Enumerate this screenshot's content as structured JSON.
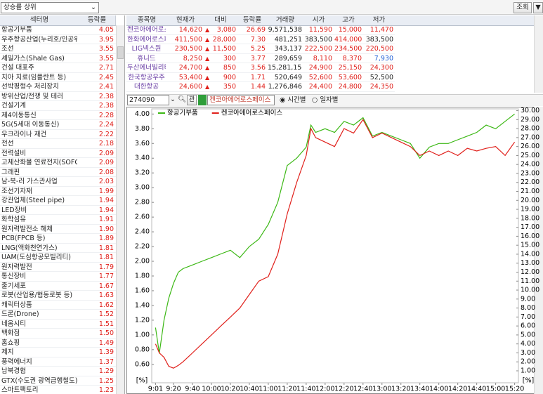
{
  "toolbar": {
    "filter": "상승률 상위",
    "buttons": [
      "조회",
      "▼"
    ]
  },
  "sector_table": {
    "headers": [
      "섹터명",
      "등락률"
    ],
    "rows": [
      [
        "항공기부품",
        "4.05"
      ],
      [
        "우주항공산업(누리호/인공위",
        "3.95"
      ],
      [
        "조선",
        "3.55"
      ],
      [
        "셰일가스(Shale Gas)",
        "3.55"
      ],
      [
        "건설 대표주",
        "2.71"
      ],
      [
        "치아 치료(임플란트 등)",
        "2.45"
      ],
      [
        "선박평형수 처리장치",
        "2.41"
      ],
      [
        "방위산업/전쟁 및 테러",
        "2.38"
      ],
      [
        "건설기계",
        "2.38"
      ],
      [
        "제4이동통신",
        "2.28"
      ],
      [
        "5G(5세대 이동통신)",
        "2.24"
      ],
      [
        "우크라이나 재건",
        "2.22"
      ],
      [
        "전선",
        "2.18"
      ],
      [
        "전력설비",
        "2.09"
      ],
      [
        "고체산화물 연료전지(SOFC)",
        "2.09"
      ],
      [
        "그래핀",
        "2.08"
      ],
      [
        "남-북-러 가스관사업",
        "2.03"
      ],
      [
        "조선기자재",
        "1.99"
      ],
      [
        "강관업체(Steel pipe)",
        "1.94"
      ],
      [
        "LED장비",
        "1.94"
      ],
      [
        "화학섬유",
        "1.91"
      ],
      [
        "원자력발전소 해체",
        "1.90"
      ],
      [
        "PCB(FPCB 등)",
        "1.89"
      ],
      [
        "LNG(액화천연가스)",
        "1.81"
      ],
      [
        "UAM(도심항공모빌리티)",
        "1.81"
      ],
      [
        "원자력발전",
        "1.79"
      ],
      [
        "통신장비",
        "1.77"
      ],
      [
        "줄기세포",
        "1.67"
      ],
      [
        "로봇(산업용/협동로봇 등)",
        "1.63"
      ],
      [
        "캐릭터상품",
        "1.62"
      ],
      [
        "드론(Drone)",
        "1.52"
      ],
      [
        "네옴시티",
        "1.51"
      ],
      [
        "백화점",
        "1.50"
      ],
      [
        "홈쇼핑",
        "1.49"
      ],
      [
        "제지",
        "1.39"
      ],
      [
        "풍력에너지",
        "1.37"
      ],
      [
        "남북경협",
        "1.29"
      ],
      [
        "GTX(수도권 광역급행철도)",
        "1.25"
      ],
      [
        "스마트팩토리",
        "1.23"
      ]
    ]
  },
  "stock_table": {
    "headers": [
      "종목명",
      "현재가",
      "대비",
      "등락률",
      "거래량",
      "시가",
      "고가",
      "저가"
    ],
    "rows": [
      {
        "sign": "▲",
        "cells": [
          "켄코아에어로스페이스",
          "14,620",
          "3,080",
          "26.69",
          "9,571,538",
          "11,590",
          "15,000",
          "11,470"
        ]
      },
      {
        "sign": "▲",
        "cells": [
          "한화에어로스페이스",
          "411,500",
          "28,000",
          "7.30",
          "481,251",
          "383,500",
          "414,000",
          "383,500"
        ]
      },
      {
        "sign": "▲",
        "cells": [
          "LIG넥스원",
          "230,500",
          "11,500",
          "5.25",
          "343,137",
          "222,500",
          "234,500",
          "220,500"
        ]
      },
      {
        "sign": "▲",
        "cells": [
          "휴니드",
          "8,250",
          "300",
          "3.77",
          "289,659",
          "8,110",
          "8,370",
          "7,930"
        ]
      },
      {
        "sign": "▲",
        "cells": [
          "두산에너빌리티",
          "24,700",
          "850",
          "3.56",
          "15,281,154",
          "24,900",
          "25,150",
          "24,300"
        ]
      },
      {
        "sign": "▲",
        "cells": [
          "한국항공우주",
          "53,400",
          "900",
          "1.71",
          "520,649",
          "52,600",
          "53,600",
          "52,500"
        ]
      },
      {
        "sign": "▲",
        "cells": [
          "대한항공",
          "24,600",
          "350",
          "1.44",
          "1,276,846",
          "24,400",
          "24,800",
          "24,350"
        ]
      }
    ]
  },
  "chart_controls": {
    "code": "274090",
    "button": "관",
    "name": "켄코아에어로스페이스",
    "radios": [
      "시간별",
      "일자별"
    ]
  },
  "chart_data": {
    "type": "line",
    "x": [
      "9:01",
      "9:05",
      "9:10",
      "9:15",
      "9:20",
      "9:25",
      "9:30",
      "9:40",
      "9:50",
      "10:00",
      "10:10",
      "10:20",
      "10:30",
      "10:40",
      "10:50",
      "11:00",
      "11:10",
      "11:20",
      "11:30",
      "11:40",
      "11:45",
      "11:50",
      "12:00",
      "12:10",
      "12:20",
      "12:30",
      "12:40",
      "12:50",
      "13:00",
      "13:10",
      "13:20",
      "13:30",
      "13:40",
      "13:50",
      "14:00",
      "14:10",
      "14:20",
      "14:30",
      "14:40",
      "14:50",
      "15:00",
      "15:10",
      "15:20"
    ],
    "series": [
      {
        "name": "항공기부품",
        "color": "#3cb815",
        "values": [
          1.1,
          0.75,
          1.2,
          1.5,
          1.7,
          1.85,
          1.9,
          1.95,
          2.0,
          2.05,
          2.1,
          2.15,
          2.05,
          2.2,
          2.3,
          2.5,
          2.8,
          3.3,
          3.4,
          3.55,
          3.85,
          3.75,
          3.8,
          3.75,
          3.9,
          3.85,
          3.95,
          3.7,
          3.75,
          3.7,
          3.65,
          3.6,
          3.4,
          3.55,
          3.6,
          3.6,
          3.65,
          3.7,
          3.75,
          3.85,
          3.8,
          3.9,
          4.0
        ]
      },
      {
        "name": "켄코아에어로스페이스",
        "color": "#e0201b",
        "axis": "y2",
        "values": [
          4.0,
          3.0,
          2.5,
          1.5,
          1.3,
          1.6,
          2.0,
          3.0,
          4.0,
          5.0,
          6.0,
          7.0,
          8.0,
          9.5,
          11.0,
          11.5,
          14.0,
          18.5,
          22.0,
          25.0,
          28.0,
          27.0,
          26.5,
          26.0,
          28.0,
          27.5,
          29.0,
          27.0,
          27.5,
          27.0,
          26.5,
          26.0,
          25.0,
          25.5,
          25.0,
          25.5,
          25.0,
          25.8,
          25.5,
          25.8,
          26.0,
          25.0,
          26.5
        ]
      }
    ],
    "xlim": [
      "8:57",
      "15:24"
    ],
    "xticks": [
      "9:01",
      "9:20",
      "9:40",
      "10:00",
      "10:20",
      "10:40",
      "11:00",
      "11:20",
      "11:40",
      "12:00",
      "12:20",
      "12:40",
      "13:00",
      "13:20",
      "13:40",
      "14:00",
      "14:20",
      "14:40",
      "15:00",
      "15:20"
    ],
    "ylim": [
      0.35,
      4.07
    ],
    "yticks": [
      {
        "value": 0.6,
        "label": "0.60"
      },
      {
        "value": 0.8,
        "label": "0.80"
      },
      {
        "value": 1,
        "label": "1.00"
      },
      {
        "value": 1.2,
        "label": "1.20"
      },
      {
        "value": 1.4,
        "label": "1.40"
      },
      {
        "value": 1.6,
        "label": "1.60"
      },
      {
        "value": 1.8,
        "label": "1.80"
      },
      {
        "value": 2,
        "label": "2.00"
      },
      {
        "value": 2.2,
        "label": "2.20"
      },
      {
        "value": 2.4,
        "label": "2.40"
      },
      {
        "value": 2.6,
        "label": "2.60"
      },
      {
        "value": 2.8,
        "label": "2.80"
      },
      {
        "value": 3,
        "label": "3.00"
      },
      {
        "value": 3.2,
        "label": "3.20"
      },
      {
        "value": 3.4,
        "label": "3.40"
      },
      {
        "value": 3.6,
        "label": "3.60"
      },
      {
        "value": 3.8,
        "label": "3.80"
      },
      {
        "value": 4,
        "label": "4.00"
      }
    ],
    "y2lim": [
      -0.33,
      30.2
    ],
    "y2ticks": [
      {
        "value": 1,
        "label": "1.00"
      },
      {
        "value": 2,
        "label": "2.00"
      },
      {
        "value": 3,
        "label": "3.00"
      },
      {
        "value": 4,
        "label": "4.00"
      },
      {
        "value": 5,
        "label": "5.00"
      },
      {
        "value": 6,
        "label": "6.00"
      },
      {
        "value": 7,
        "label": "7.00"
      },
      {
        "value": 8,
        "label": "8.00"
      },
      {
        "value": 9,
        "label": "9.00"
      },
      {
        "value": 10,
        "label": "10.00"
      },
      {
        "value": 11,
        "label": "11.00"
      },
      {
        "value": 12,
        "label": "12.00"
      },
      {
        "value": 13,
        "label": "13.00"
      },
      {
        "value": 14,
        "label": "14.00"
      },
      {
        "value": 15,
        "label": "15.00"
      },
      {
        "value": 16,
        "label": "16.00"
      },
      {
        "value": 17,
        "label": "17.00"
      },
      {
        "value": 18,
        "label": "18.00"
      },
      {
        "value": 19,
        "label": "19.00"
      },
      {
        "value": 20,
        "label": "20.00"
      },
      {
        "value": 21,
        "label": "21.00"
      },
      {
        "value": 22,
        "label": "22.00"
      },
      {
        "value": 23,
        "label": "23.00"
      },
      {
        "value": 24,
        "label": "24.00"
      },
      {
        "value": 25,
        "label": "25.00"
      },
      {
        "value": 26,
        "label": "26.00"
      },
      {
        "value": 27,
        "label": "27.00"
      },
      {
        "value": 28,
        "label": "28.00"
      },
      {
        "value": 29,
        "label": "29.00"
      },
      {
        "value": 30,
        "label": "30.00"
      }
    ],
    "ylabel": "[%]",
    "y2label": "[%]",
    "legend": "top-left"
  }
}
